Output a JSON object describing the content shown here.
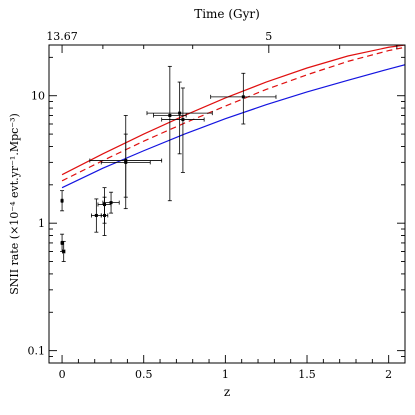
{
  "chart_data": {
    "type": "scatter",
    "xlabel": "z",
    "ylabel": "SNII rate  (×10⁻⁴ evt.yr⁻¹.Mpc⁻³)",
    "top_axis_label": "Time (Gyr)",
    "top_tick_labels": [
      {
        "z": 0,
        "label": "13.67"
      },
      {
        "z": 1.266,
        "label": "5"
      }
    ],
    "xlim": [
      -0.08,
      2.1
    ],
    "ylim": [
      0.08,
      25
    ],
    "yscale": "log",
    "x_ticks": [
      0,
      0.5,
      1,
      1.5,
      2
    ],
    "x_tick_labels": [
      "0",
      "0.5",
      "1",
      "1.5",
      "2"
    ],
    "y_ticks": [
      0.1,
      1,
      10
    ],
    "y_tick_labels": [
      "0.1",
      "1",
      "10"
    ],
    "grid": false,
    "legend": "none",
    "colors": {
      "red": "#e01010",
      "blue": "#1414e0",
      "points": "#000000"
    },
    "points": [
      {
        "x": 0.0,
        "y": 1.5,
        "xerr": 0.005,
        "ylo": 1.25,
        "yhi": 1.8
      },
      {
        "x": 0.0,
        "y": 0.7,
        "xerr": 0.005,
        "ylo": 0.6,
        "yhi": 0.82
      },
      {
        "x": 0.01,
        "y": 0.6,
        "xerr": 0.007,
        "ylo": 0.5,
        "yhi": 0.72
      },
      {
        "x": 0.21,
        "y": 1.15,
        "xerr": 0.03,
        "ylo": 0.85,
        "yhi": 1.55
      },
      {
        "x": 0.26,
        "y": 1.4,
        "xerr": 0.04,
        "ylo": 1.0,
        "yhi": 1.9
      },
      {
        "x": 0.26,
        "y": 1.15,
        "xerr": 0.02,
        "ylo": 0.8,
        "yhi": 1.6
      },
      {
        "x": 0.3,
        "y": 1.45,
        "xerr": 0.05,
        "ylo": 1.2,
        "yhi": 1.75
      },
      {
        "x": 0.39,
        "y": 3.1,
        "xerr": 0.22,
        "ylo": 1.6,
        "yhi": 7.0
      },
      {
        "x": 0.39,
        "y": 3.0,
        "xerr": 0.15,
        "ylo": 1.3,
        "yhi": 5.0
      },
      {
        "x": 0.66,
        "y": 7.0,
        "xerr": 0.1,
        "ylo": 1.5,
        "yhi": 17.0
      },
      {
        "x": 0.72,
        "y": 7.3,
        "xerr": 0.2,
        "ylo": 3.5,
        "yhi": 12.8
      },
      {
        "x": 0.74,
        "y": 6.5,
        "xerr": 0.13,
        "ylo": 2.5,
        "yhi": 11.5
      },
      {
        "x": 1.11,
        "y": 9.8,
        "xerr": 0.2,
        "ylo": 6.0,
        "yhi": 15.0
      }
    ],
    "series": [
      {
        "style": "solid",
        "color": "#e01010",
        "x": [
          0,
          0.25,
          0.5,
          0.75,
          1.0,
          1.25,
          1.5,
          1.75,
          2.0,
          2.1
        ],
        "y": [
          2.4,
          3.5,
          5.0,
          7.0,
          9.6,
          12.8,
          16.5,
          20.5,
          24.0,
          25.0
        ]
      },
      {
        "style": "dashed",
        "color": "#e01010",
        "x": [
          0,
          0.25,
          0.5,
          0.75,
          1.0,
          1.25,
          1.5,
          1.75,
          2.0,
          2.1
        ],
        "y": [
          2.15,
          3.1,
          4.4,
          6.1,
          8.3,
          11.2,
          14.6,
          18.6,
          22.6,
          24.0
        ]
      },
      {
        "style": "solid",
        "color": "#1414e0",
        "x": [
          0,
          0.25,
          0.5,
          0.75,
          1.0,
          1.25,
          1.5,
          1.75,
          2.0,
          2.1
        ],
        "y": [
          1.9,
          2.7,
          3.7,
          5.0,
          6.6,
          8.5,
          10.7,
          13.2,
          16.2,
          17.5
        ]
      }
    ]
  }
}
